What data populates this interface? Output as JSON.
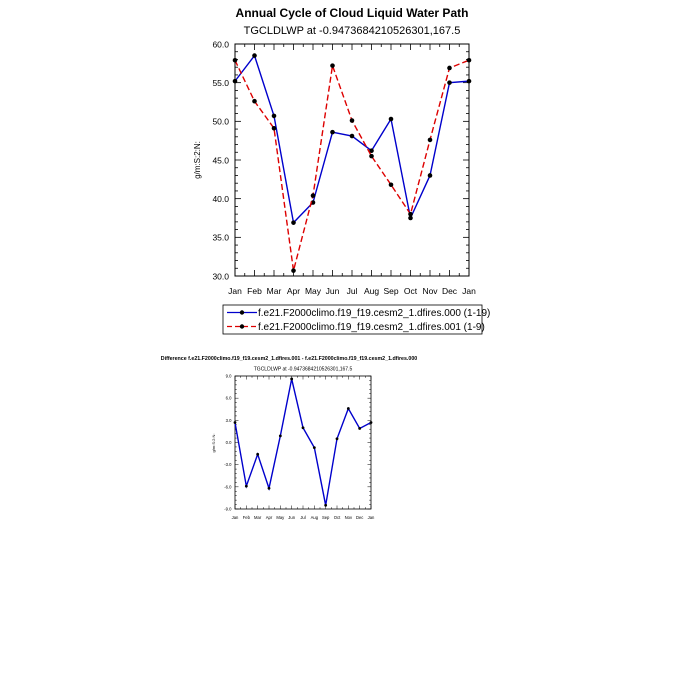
{
  "chart_data": [
    {
      "type": "line",
      "title": "Annual Cycle of Cloud Liquid Water Path",
      "subtitle": "TGCLDLWP at -0.9473684210526301,167.5",
      "ylabel": "g/m:S:2:N:",
      "xlabel": "",
      "ylim": [
        30.0,
        60.0
      ],
      "yticks": [
        "30.0",
        "35.0",
        "40.0",
        "45.0",
        "50.0",
        "55.0",
        "60.0"
      ],
      "categories": [
        "Jan",
        "Feb",
        "Mar",
        "Apr",
        "May",
        "Jun",
        "Jul",
        "Aug",
        "Sep",
        "Oct",
        "Nov",
        "Dec",
        "Jan"
      ],
      "series": [
        {
          "name": "f.e21.F2000climo.f19_f19.cesm2_1.dfires.000 (1-19)",
          "color": "#0000cc",
          "dash": "solid",
          "values": [
            55.2,
            58.5,
            50.7,
            36.9,
            39.5,
            48.6,
            48.1,
            46.2,
            50.3,
            37.5,
            43.0,
            55.0,
            55.2
          ]
        },
        {
          "name": "f.e21.F2000climo.f19_f19.cesm2_1.dfires.001 (1-9)",
          "color": "#dd0000",
          "dash": "dashed",
          "values": [
            57.9,
            52.6,
            49.1,
            30.7,
            40.4,
            57.2,
            50.1,
            45.5,
            41.8,
            38.0,
            47.6,
            56.9,
            57.9
          ]
        }
      ]
    },
    {
      "type": "line",
      "title": "Difference f.e21.F2000climo.f19_f19.cesm2_1.dfires.001 - f.e21.F2000climo.f19_f19.cesm2_1.dfires.000",
      "subtitle": "TGCLDLWP at -0.9473684210526301,167.5",
      "ylabel": "g/m:S:2:N:",
      "xlabel": "",
      "ylim": [
        -9.0,
        9.0
      ],
      "yticks": [
        "-9.0",
        "-6.0",
        "-3.0",
        "0.0",
        "3.0",
        "6.0",
        "9.0"
      ],
      "categories": [
        "Jan",
        "Feb",
        "Mar",
        "Apr",
        "May",
        "Jun",
        "Jul",
        "Aug",
        "Sep",
        "Oct",
        "Nov",
        "Dec",
        "Jan"
      ],
      "series": [
        {
          "name": "difference",
          "color": "#0000cc",
          "dash": "solid",
          "values": [
            2.7,
            -5.9,
            -1.6,
            -6.2,
            0.9,
            8.6,
            2.0,
            -0.7,
            -8.5,
            0.5,
            4.6,
            1.9,
            2.7
          ]
        }
      ]
    }
  ]
}
